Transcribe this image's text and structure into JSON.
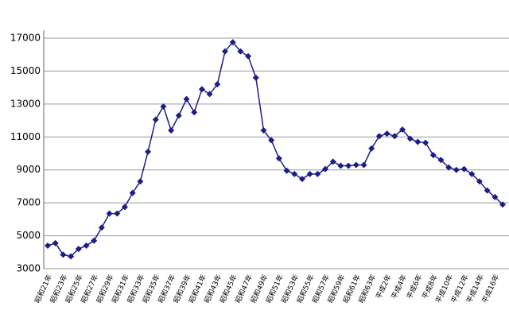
{
  "chart_data": {
    "type": "line",
    "categories": [
      "昭和21年",
      null,
      "昭和23年",
      null,
      "昭和25年",
      null,
      "昭和27年",
      null,
      "昭和29年",
      null,
      "昭和31年",
      null,
      "昭和33年",
      null,
      "昭和35年",
      null,
      "昭和37年",
      null,
      "昭和39年",
      null,
      "昭和41年",
      null,
      "昭和43年",
      null,
      "昭和45年",
      null,
      "昭和47年",
      null,
      "昭和49年",
      null,
      "昭和51年",
      null,
      "昭和53年",
      null,
      "昭和55年",
      null,
      "昭和57年",
      null,
      "昭和59年",
      null,
      "昭和61年",
      null,
      "昭和63年",
      null,
      "平成2年",
      null,
      "平成4年",
      null,
      "平成6年",
      null,
      "平成8年",
      null,
      "平成10年",
      null,
      "平成12年",
      null,
      "平成14年",
      null,
      "平成16年",
      null
    ],
    "values": [
      4400,
      4550,
      3850,
      3750,
      4200,
      4400,
      4700,
      5500,
      6350,
      6350,
      6750,
      7600,
      8300,
      10100,
      12050,
      12850,
      11400,
      12300,
      13300,
      12500,
      13900,
      13600,
      14200,
      16200,
      16750,
      16200,
      15900,
      14600,
      11400,
      10800,
      9700,
      8950,
      8750,
      8450,
      8750,
      8750,
      9050,
      9500,
      9250,
      9250,
      9300,
      9300,
      10300,
      11050,
      11200,
      11050,
      11450,
      10900,
      10700,
      10650,
      9900,
      9600,
      9150,
      9000,
      9050,
      8750,
      8300,
      7750,
      7350,
      6900
    ],
    "color": "#1c1c8a",
    "ylim": [
      3000,
      17000
    ],
    "yticks": [
      3000,
      5000,
      7000,
      9000,
      11000,
      13000,
      15000,
      17000
    ],
    "grid": true
  }
}
